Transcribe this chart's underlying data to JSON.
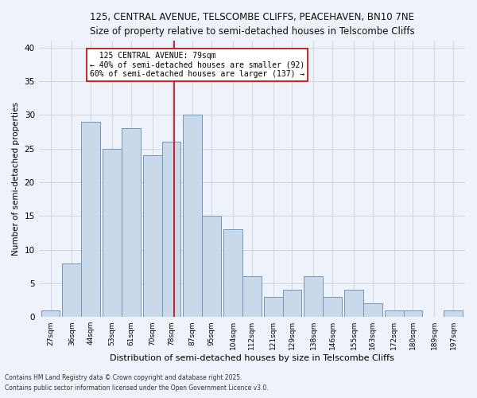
{
  "title_line1": "125, CENTRAL AVENUE, TELSCOMBE CLIFFS, PEACEHAVEN, BN10 7NE",
  "title_line2": "Size of property relative to semi-detached houses in Telscombe Cliffs",
  "xlabel": "Distribution of semi-detached houses by size in Telscombe Cliffs",
  "ylabel": "Number of semi-detached properties",
  "categories": [
    "27sqm",
    "36sqm",
    "44sqm",
    "53sqm",
    "61sqm",
    "70sqm",
    "78sqm",
    "87sqm",
    "95sqm",
    "104sqm",
    "112sqm",
    "121sqm",
    "129sqm",
    "138sqm",
    "146sqm",
    "155sqm",
    "163sqm",
    "172sqm",
    "180sqm",
    "189sqm",
    "197sqm"
  ],
  "values": [
    1,
    8,
    29,
    25,
    28,
    24,
    26,
    30,
    15,
    13,
    6,
    3,
    4,
    6,
    3,
    4,
    2,
    1,
    1,
    0,
    1
  ],
  "bar_color": "#c9d9ea",
  "bar_edge_color": "#7098bc",
  "vline_color": "#cc0000",
  "annotation_box_color": "#ffffff",
  "annotation_box_edge_color": "#cc0000",
  "reference_line_label": "125 CENTRAL AVENUE: 79sqm",
  "arrow_left_text": "← 40% of semi-detached houses are smaller (92)",
  "arrow_right_text": "60% of semi-detached houses are larger (137) →",
  "ylim": [
    0,
    41
  ],
  "yticks": [
    0,
    5,
    10,
    15,
    20,
    25,
    30,
    35,
    40
  ],
  "footer1": "Contains HM Land Registry data © Crown copyright and database right 2025.",
  "footer2": "Contains public sector information licensed under the Open Government Licence v3.0.",
  "bg_color": "#eef2fb",
  "grid_color": "#c8d0de"
}
